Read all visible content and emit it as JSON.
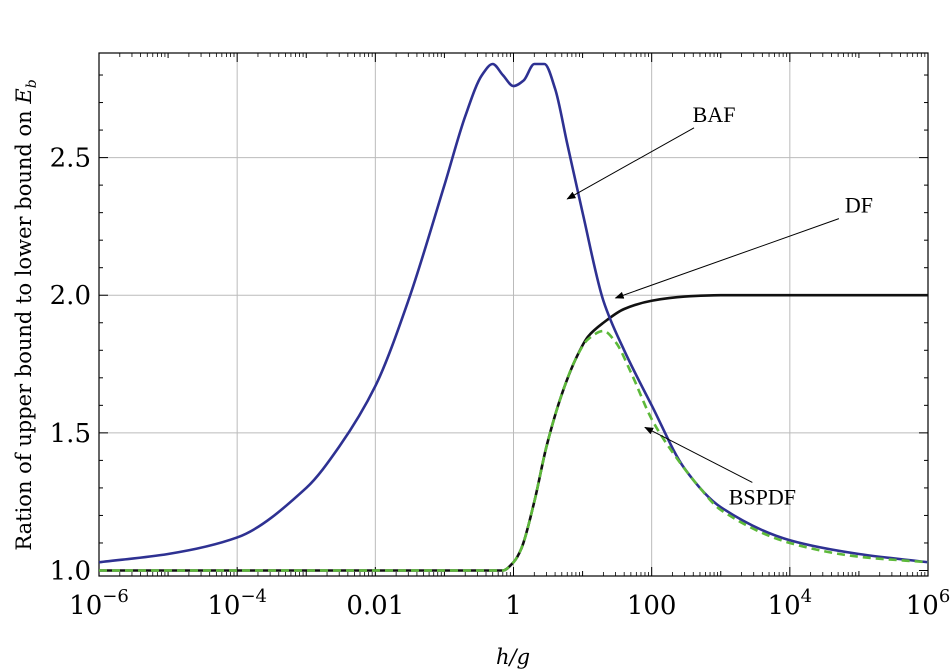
{
  "chart_data": {
    "type": "line",
    "xscale": "log",
    "xlim": [
      1e-06,
      1000000.0
    ],
    "ylim": [
      0.98,
      2.88
    ],
    "grid": true,
    "xlabel": "h/g",
    "ylabel_main": "Ration of upper bound to lower bound on ",
    "ylabel_symbol": "E",
    "ylabel_sub": "b",
    "xticks": [
      {
        "value": 1e-06,
        "base": "10",
        "exp": "−6"
      },
      {
        "value": 0.0001,
        "base": "10",
        "exp": "−4"
      },
      {
        "value": 0.01,
        "base": "0.01",
        "exp": ""
      },
      {
        "value": 1,
        "base": "1",
        "exp": ""
      },
      {
        "value": 100,
        "base": "100",
        "exp": ""
      },
      {
        "value": 10000,
        "base": "10",
        "exp": "4"
      },
      {
        "value": 1000000,
        "base": "10",
        "exp": "6"
      }
    ],
    "yticks": [
      {
        "value": 1.0,
        "label": "1.0"
      },
      {
        "value": 1.5,
        "label": "1.5"
      },
      {
        "value": 2.0,
        "label": "2.0"
      },
      {
        "value": 2.5,
        "label": "2.5"
      }
    ],
    "series": [
      {
        "name": "BAF",
        "color": "#2e3192",
        "dash": "solid",
        "x": [
          1e-06,
          1e-05,
          0.0001,
          0.001,
          0.003,
          0.01,
          0.03,
          0.1,
          0.2,
          0.35,
          0.5,
          0.7,
          1,
          1.4,
          2,
          2.8,
          4,
          6,
          10,
          20,
          40,
          100,
          300,
          1000,
          10000,
          100000,
          1000000
        ],
        "y": [
          1.03,
          1.06,
          1.12,
          1.3,
          1.45,
          1.67,
          1.98,
          2.4,
          2.65,
          2.8,
          2.84,
          2.8,
          2.76,
          2.78,
          2.84,
          2.84,
          2.75,
          2.55,
          2.3,
          1.98,
          1.8,
          1.6,
          1.37,
          1.23,
          1.11,
          1.06,
          1.03
        ]
      },
      {
        "name": "DF",
        "color": "#111111",
        "dash": "solid",
        "x": [
          1e-06,
          0.001,
          0.5,
          0.7,
          1,
          1.3,
          2,
          3,
          5,
          8,
          12,
          20,
          40,
          100,
          300,
          1000,
          10000,
          1000000
        ],
        "y": [
          1.0,
          1.0,
          1.0,
          1.0,
          1.03,
          1.08,
          1.25,
          1.45,
          1.64,
          1.77,
          1.85,
          1.9,
          1.95,
          1.98,
          1.995,
          2.0,
          2.0,
          2.0
        ]
      },
      {
        "name": "BSPDF",
        "color": "#5db93a",
        "dash": "dashed",
        "x": [
          1e-06,
          0.001,
          0.5,
          0.7,
          1,
          1.3,
          2,
          3,
          5,
          8,
          12,
          20,
          30,
          50,
          100,
          200,
          500,
          1000,
          10000,
          100000,
          1000000
        ],
        "y": [
          1.0,
          1.0,
          1.0,
          1.0,
          1.03,
          1.08,
          1.25,
          1.45,
          1.64,
          1.77,
          1.84,
          1.87,
          1.83,
          1.72,
          1.55,
          1.43,
          1.3,
          1.22,
          1.1,
          1.05,
          1.03
        ]
      }
    ],
    "annotations": [
      {
        "text": "BAF",
        "x": 800,
        "y": 2.63,
        "arrow_to": [
          6,
          2.35
        ]
      },
      {
        "text": "DF",
        "x": 100000,
        "y": 2.3,
        "arrow_to": [
          30,
          1.99
        ]
      },
      {
        "text": "BSPDF",
        "x": 4000,
        "y": 1.24,
        "arrow_to": [
          80,
          1.52
        ]
      }
    ]
  }
}
